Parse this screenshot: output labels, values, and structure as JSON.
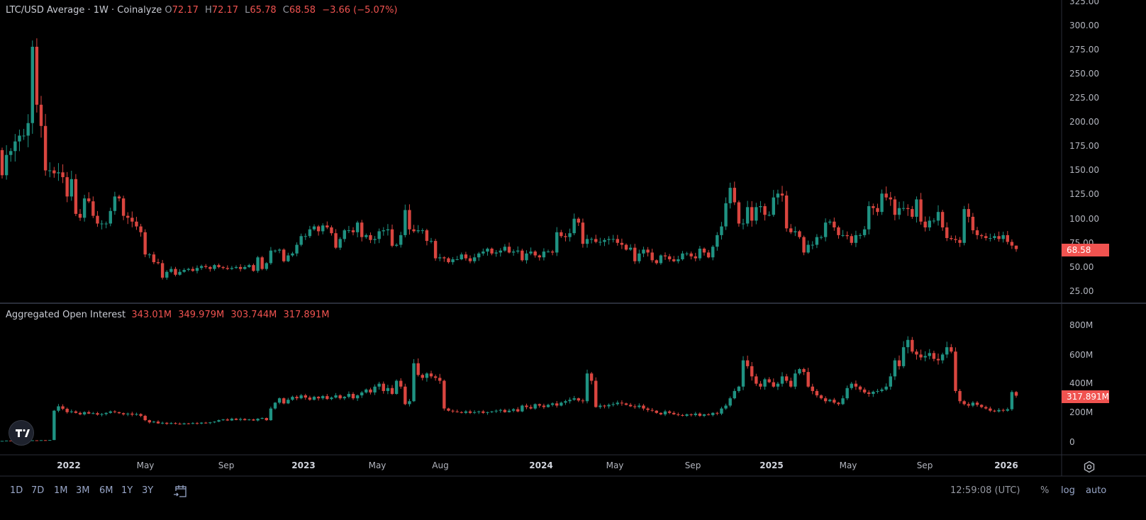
{
  "legend": {
    "title": "LTC/USD Average · 1W · Coinalyze",
    "o_label": "O",
    "o_value": "72.17",
    "h_label": "H",
    "h_value": "72.17",
    "l_label": "L",
    "l_value": "65.78",
    "c_label": "C",
    "c_value": "68.58",
    "change": "−3.66 (−5.07%)"
  },
  "oi_legend": {
    "title": "Aggregated Open Interest",
    "values": [
      "343.01M",
      "349.979M",
      "303.744M",
      "317.891M"
    ]
  },
  "price_axis": {
    "ticks": [
      "325.00",
      "300.00",
      "275.00",
      "250.00",
      "225.00",
      "200.00",
      "175.00",
      "150.00",
      "125.00",
      "100.00",
      "75.00",
      "50.00",
      "25.00"
    ],
    "last_price": "68.58"
  },
  "oi_axis": {
    "ticks": [
      "800M",
      "600M",
      "400M",
      "200M",
      "0"
    ],
    "last_value": "317.891M"
  },
  "time_axis": {
    "labels": [
      "2022",
      "May",
      "Sep",
      "2023",
      "May",
      "Aug",
      "2024",
      "May",
      "Sep",
      "2025",
      "May",
      "Sep",
      "2026"
    ]
  },
  "toolbar": {
    "ranges": [
      "1D",
      "7D",
      "1M",
      "3M",
      "6M",
      "1Y",
      "3Y"
    ],
    "clock": "12:59:08 (UTC)",
    "percent": "%",
    "log": "log",
    "auto": "auto",
    "icons": {
      "goto_date": "calendar-arrow-icon",
      "settings": "gear-icon",
      "logo": "tradingview-logo"
    }
  },
  "colors": {
    "up": "#1f9282",
    "down": "#d9453f",
    "last_tag": "#f05350",
    "background": "#000000",
    "grid_line": "#2a2e39"
  },
  "chart_data": [
    {
      "type": "candlestick",
      "title": "LTC/USD Average · 1W · Coinalyze",
      "interval": "1W",
      "x_range": [
        "2021-10",
        "2026-01"
      ],
      "ylim": [
        10,
        330
      ],
      "first_open": 171,
      "closes": [
        145,
        166,
        170,
        180,
        186,
        186,
        199,
        278,
        218,
        196,
        150,
        150,
        147,
        148,
        143,
        123,
        141,
        105,
        101,
        121,
        118,
        103,
        95,
        95,
        95,
        108,
        123,
        121,
        103,
        101,
        97,
        92,
        86,
        63,
        63,
        55,
        54,
        39,
        45,
        48,
        42,
        45,
        47,
        48,
        46,
        49,
        51,
        50,
        48,
        52,
        50,
        49,
        48,
        49,
        50,
        48,
        50,
        52,
        46,
        60,
        48,
        54,
        67,
        67,
        68,
        56,
        62,
        64,
        73,
        82,
        82,
        89,
        92,
        87,
        93,
        91,
        85,
        70,
        79,
        88,
        88,
        86,
        96,
        81,
        83,
        78,
        79,
        87,
        88,
        89,
        72,
        73,
        83,
        109,
        89,
        87,
        88,
        88,
        77,
        77,
        59,
        60,
        59,
        55,
        58,
        58,
        63,
        59,
        56,
        60,
        64,
        66,
        69,
        64,
        65,
        67,
        71,
        65,
        66,
        67,
        57,
        64,
        66,
        62,
        60,
        66,
        66,
        65,
        86,
        82,
        81,
        85,
        100,
        96,
        74,
        79,
        79,
        76,
        76,
        78,
        79,
        79,
        75,
        73,
        68,
        70,
        56,
        64,
        68,
        65,
        57,
        54,
        62,
        61,
        58,
        56,
        58,
        64,
        64,
        61,
        59,
        69,
        65,
        60,
        71,
        83,
        92,
        116,
        132,
        117,
        95,
        95,
        112,
        98,
        112,
        113,
        104,
        104,
        122,
        126,
        124,
        90,
        86,
        87,
        81,
        65,
        73,
        73,
        81,
        81,
        96,
        97,
        91,
        83,
        83,
        82,
        75,
        83,
        83,
        89,
        113,
        111,
        107,
        126,
        122,
        120,
        104,
        111,
        111,
        110,
        102,
        120,
        97,
        91,
        98,
        98,
        107,
        91,
        80,
        79,
        78,
        75,
        110,
        102,
        88,
        83,
        82,
        80,
        80,
        82,
        79,
        83,
        76,
        72.17,
        68.58
      ],
      "last": {
        "open": 72.17,
        "high": 72.17,
        "low": 65.78,
        "close": 68.58,
        "change": -3.66,
        "change_pct": -5.07
      }
    },
    {
      "type": "candlestick",
      "title": "Aggregated Open Interest",
      "unit": "M",
      "ylim": [
        -60,
        880
      ],
      "closes": [
        8,
        10,
        9,
        11,
        10,
        12,
        11,
        12,
        10,
        13,
        12,
        14,
        215,
        245,
        228,
        205,
        210,
        200,
        190,
        205,
        195,
        198,
        188,
        192,
        200,
        210,
        205,
        198,
        190,
        195,
        188,
        192,
        180,
        150,
        135,
        140,
        128,
        132,
        125,
        130,
        126,
        122,
        128,
        125,
        130,
        127,
        133,
        130,
        135,
        140,
        150,
        155,
        148,
        160,
        152,
        158,
        150,
        155,
        148,
        160,
        165,
        150,
        230,
        270,
        300,
        265,
        290,
        310,
        300,
        320,
        305,
        290,
        310,
        300,
        315,
        295,
        305,
        320,
        300,
        310,
        330,
        300,
        320,
        340,
        360,
        340,
        380,
        400,
        350,
        370,
        330,
        420,
        380,
        260,
        280,
        540,
        460,
        440,
        470,
        450,
        440,
        420,
        230,
        215,
        210,
        205,
        200,
        210,
        200,
        205,
        210,
        200,
        205,
        210,
        215,
        220,
        205,
        215,
        225,
        210,
        250,
        240,
        230,
        260,
        250,
        240,
        255,
        265,
        250,
        270,
        280,
        290,
        300,
        285,
        280,
        470,
        420,
        240,
        250,
        245,
        255,
        260,
        270,
        265,
        255,
        245,
        240,
        250,
        230,
        220,
        215,
        200,
        190,
        210,
        200,
        190,
        185,
        180,
        190,
        185,
        195,
        180,
        190,
        185,
        200,
        195,
        230,
        250,
        300,
        350,
        380,
        560,
        520,
        450,
        400,
        380,
        430,
        410,
        380,
        400,
        450,
        420,
        380,
        470,
        500,
        480,
        380,
        350,
        320,
        300,
        280,
        290,
        270,
        260,
        300,
        370,
        400,
        380,
        360,
        340,
        330,
        345,
        350,
        360,
        380,
        450,
        560,
        520,
        650,
        700,
        620,
        600,
        580,
        590,
        610,
        570,
        560,
        600,
        650,
        620,
        350,
        280,
        260,
        250,
        270,
        255,
        240,
        230,
        215,
        210,
        220,
        215,
        225,
        343.01,
        317.891
      ],
      "last": {
        "open": 343.01,
        "high": 349.979,
        "low": 303.744,
        "close": 317.891
      }
    }
  ]
}
